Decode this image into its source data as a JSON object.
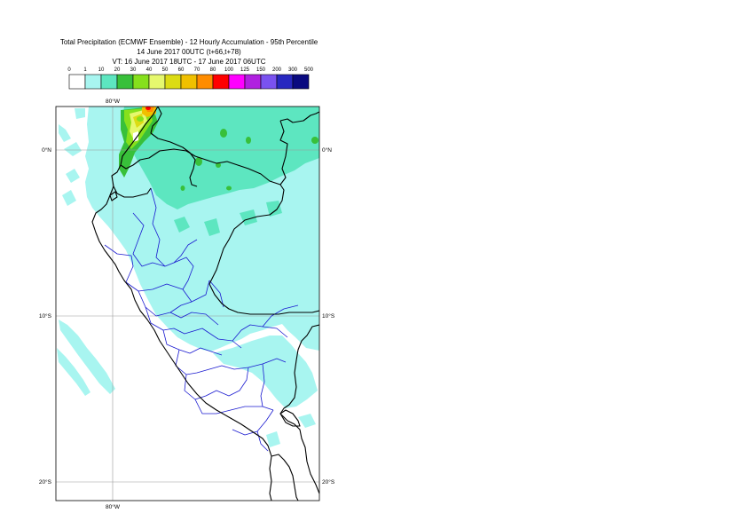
{
  "header": {
    "title": "Total Precipitation (ECMWF Ensemble) - 12 Hourly Accumulation - 95th Percentile",
    "base_time": "14 June 2017 00UTC (t+66,t+78)",
    "valid_time": "VT: 16 June 2017 18UTC - 17 June 2017 06UTC"
  },
  "legend": {
    "thresholds": [
      "0",
      "1",
      "10",
      "20",
      "30",
      "40",
      "50",
      "60",
      "70",
      "80",
      "100",
      "125",
      "150",
      "200",
      "300",
      "500"
    ],
    "colors": [
      "#ffffff",
      "#a8f5f0",
      "#5de6c0",
      "#38c03a",
      "#86e01c",
      "#e6f86e",
      "#dcdc14",
      "#f0c000",
      "#ff8c00",
      "#ff0000",
      "#ff00ff",
      "#b020e0",
      "#7a52f0",
      "#2828c0",
      "#0a0a80"
    ]
  },
  "map": {
    "lon_labels": [
      "80°W",
      "80°W"
    ],
    "lat_labels": [
      {
        "left": "0°N",
        "right": "0°N"
      },
      {
        "left": "10°S",
        "right": "10°S"
      },
      {
        "left": "20°S",
        "right": "20°S"
      }
    ],
    "colors": {
      "light_cyan": "#a8f5f0",
      "teal": "#5de6c0",
      "green": "#38c03a",
      "lime": "#86e01c",
      "yellow": "#e6f86e",
      "orange": "#f0c000",
      "red": "#ff0000",
      "border": "#000000",
      "admin": "#1a1ad0",
      "grid": "#9a9a9a"
    }
  }
}
